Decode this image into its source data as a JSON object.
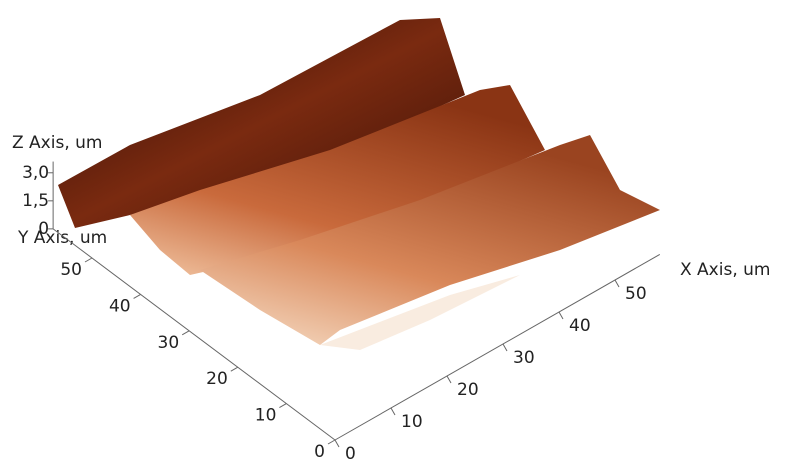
{
  "chart_data": {
    "type": "surface3d",
    "xlabel": "X Axis, um",
    "ylabel": "Y Axis, um",
    "zlabel": "Z Axis, um",
    "xlim": [
      0,
      58
    ],
    "ylim": [
      0,
      58
    ],
    "zlim": [
      0,
      3.6
    ],
    "xticks": [
      0,
      10,
      20,
      30,
      40,
      50
    ],
    "yticks": [
      0,
      10,
      20,
      30,
      40,
      50
    ],
    "zticks": [
      0,
      {
        "value": 1.5,
        "label": "1,5"
      },
      {
        "value": 3,
        "label": "3,0"
      }
    ]
  }
}
